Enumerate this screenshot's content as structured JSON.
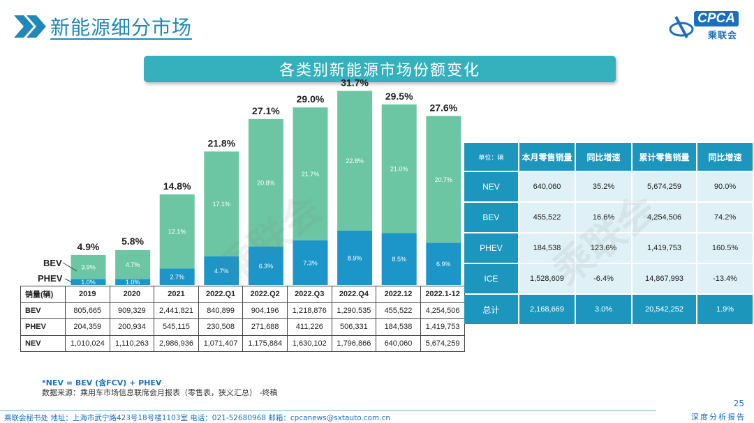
{
  "header": {
    "title": "新能源细分市场"
  },
  "logo": {
    "brand": "CPCA",
    "sub": "乘联会"
  },
  "banner": {
    "title": "各类别新能源市场份额变化"
  },
  "chart_data": {
    "type": "bar",
    "stacked": true,
    "categories": [
      "2019",
      "2020",
      "2021",
      "2022.Q1",
      "2022.Q2",
      "2022.Q3",
      "2022.Q4",
      "2022.12",
      "2022.1-12"
    ],
    "series": [
      {
        "name": "PHEV",
        "values": [
          1.0,
          1.0,
          2.7,
          4.7,
          6.3,
          7.3,
          8.9,
          8.5,
          6.9
        ],
        "labels": [
          "1.0%",
          "1.0%",
          "2.7%",
          "4.7%",
          "6.3%",
          "7.3%",
          "8.9%",
          "8.5%",
          "6.9%"
        ],
        "color": "#1c96c8"
      },
      {
        "name": "BEV",
        "values": [
          3.9,
          4.7,
          12.1,
          17.1,
          20.8,
          21.7,
          22.8,
          21.0,
          20.7
        ],
        "labels": [
          "3.9%",
          "4.7%",
          "12.1%",
          "17.1%",
          "20.8%",
          "21.7%",
          "22.8%",
          "21.0%",
          "20.7%"
        ],
        "color": "#6cc6a4"
      }
    ],
    "totals": [
      "4.9%",
      "5.8%",
      "14.8%",
      "21.8%",
      "27.1%",
      "29.0%",
      "31.7%",
      "29.5%",
      "27.6%"
    ],
    "total_values": [
      4.9,
      5.8,
      14.8,
      21.8,
      27.1,
      29.0,
      31.7,
      29.5,
      27.6
    ],
    "ylim": [
      0,
      33
    ]
  },
  "sales_table": {
    "header": "销量(辆)",
    "rows": [
      {
        "label": "BEV",
        "values": [
          "805,665",
          "909,329",
          "2,441,821",
          "840,899",
          "904,196",
          "1,218,876",
          "1,290,535",
          "455,522",
          "4,254,506"
        ]
      },
      {
        "label": "PHEV",
        "values": [
          "204,359",
          "200,934",
          "545,115",
          "230,508",
          "271,688",
          "411,226",
          "506,331",
          "184,538",
          "1,419,753"
        ]
      },
      {
        "label": "NEV",
        "values": [
          "1,010,024",
          "1,110,263",
          "2,986,936",
          "1,071,407",
          "1,175,884",
          "1,630,102",
          "1,796,866",
          "640,060",
          "5,674,259"
        ]
      }
    ]
  },
  "summary_table": {
    "columns": [
      "单位：辆",
      "本月零售销量",
      "同比增速",
      "累计零售销量",
      "同比增速"
    ],
    "rows": [
      {
        "name": "NEV",
        "values": [
          "640,060",
          "35.2%",
          "5,674,259",
          "90.0%"
        ]
      },
      {
        "name": "BEV",
        "values": [
          "455,522",
          "16.6%",
          "4,254,506",
          "74.2%"
        ]
      },
      {
        "name": "PHEV",
        "values": [
          "184,538",
          "123.6%",
          "1,419,753",
          "160.5%"
        ]
      },
      {
        "name": "ICE",
        "values": [
          "1,528,609",
          "-6.4%",
          "14,867,993",
          "-13.4%"
        ]
      },
      {
        "name": "总计",
        "values": [
          "2,168,669",
          "3.0%",
          "20,542,252",
          "1.9%"
        ]
      }
    ]
  },
  "footnote": {
    "line1": "*NEV = BEV (含FCV) + PHEV",
    "line2": "数据来源：乘用车市场信息联席会月报表（零售表，狭义汇总） -终稿"
  },
  "footer": {
    "text": "乘联会秘书处   地址：上海市武宁路423号18号楼1103室  电话：021-52680968   邮箱：cpcanews@sxtauto.com.cn",
    "right": "深度分析报告",
    "page": "25"
  },
  "watermark": "乘联会",
  "colors": {
    "accent": "#1c96bd",
    "phev": "#1c96c8",
    "bev": "#6cc6a4"
  }
}
